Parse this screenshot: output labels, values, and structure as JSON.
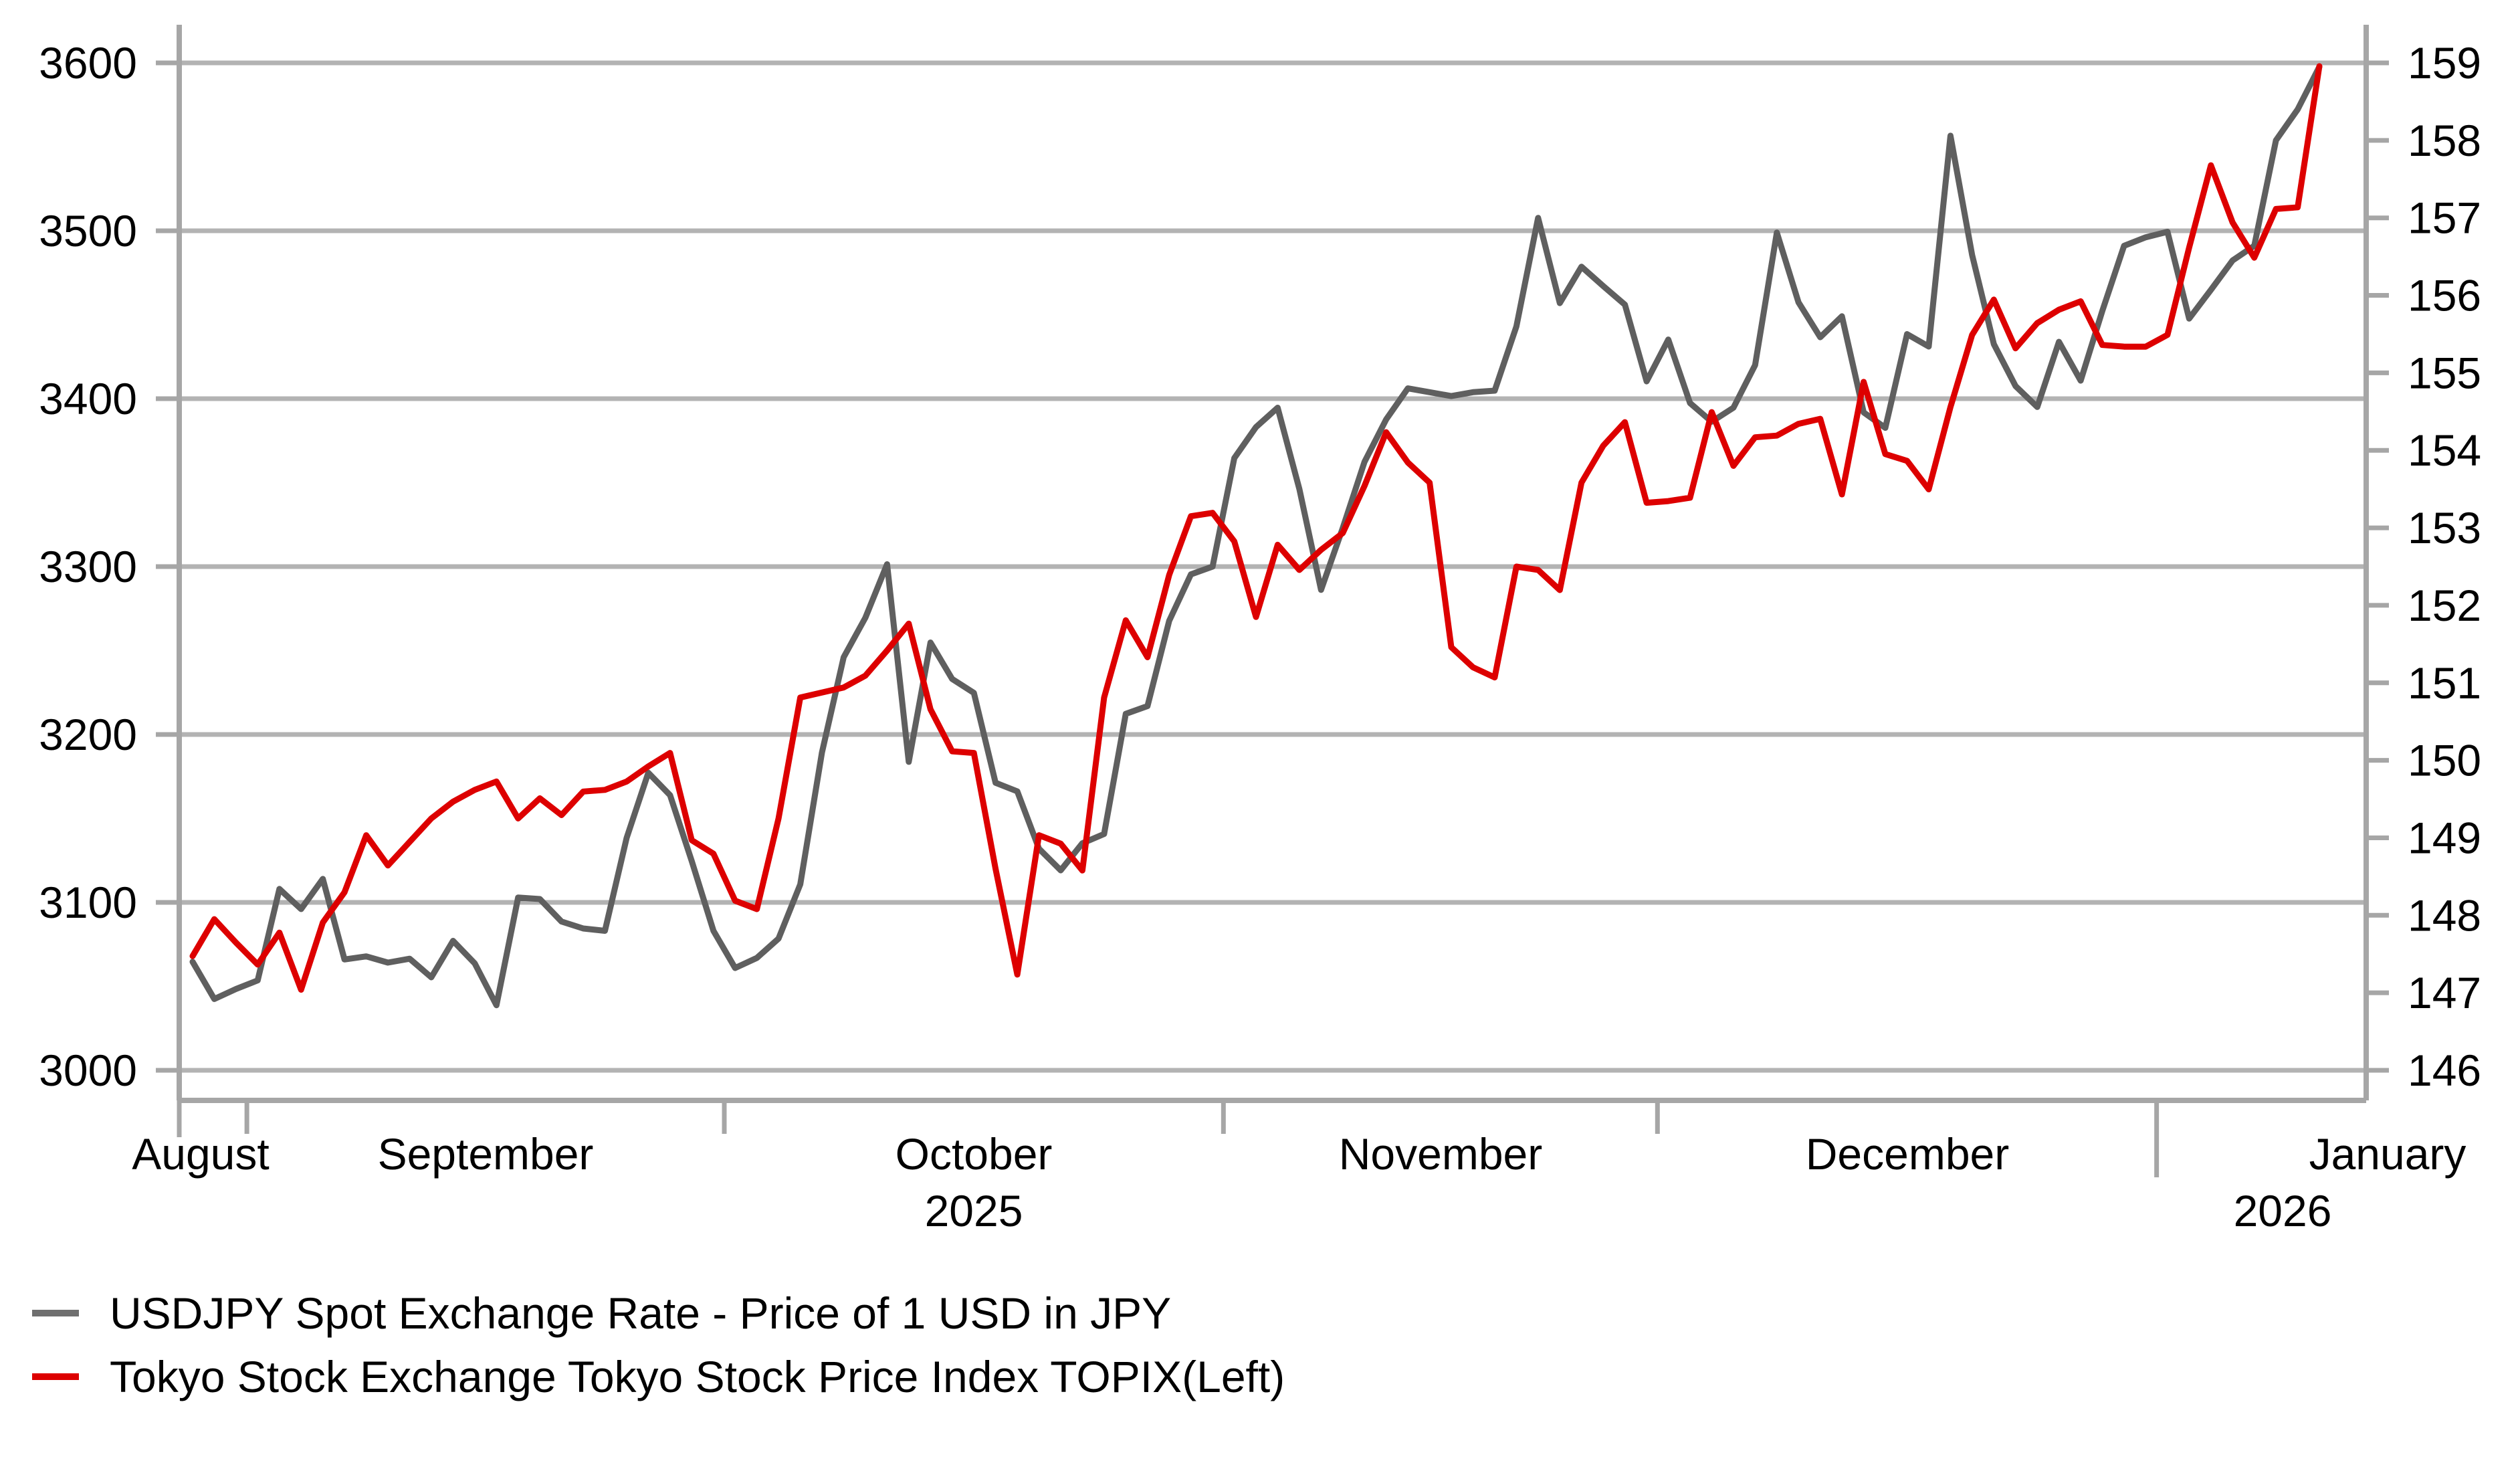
{
  "chart_data": {
    "type": "line",
    "title": "",
    "x_axis": {
      "month_labels": [
        "August",
        "September",
        "October",
        "November",
        "December",
        "January"
      ],
      "year_labels": [
        "2025",
        "2026"
      ]
    },
    "left_axis": {
      "min": 3000,
      "max": 3600,
      "step": 100,
      "tick_labels": [
        "3600",
        "3500",
        "3400",
        "3300",
        "3200",
        "3100",
        "3000"
      ]
    },
    "right_axis": {
      "min": 146,
      "max": 159,
      "step": 1,
      "tick_labels": [
        "159",
        "158",
        "157",
        "156",
        "155",
        "154",
        "153",
        "152",
        "151",
        "150",
        "149",
        "148",
        "147",
        "146"
      ]
    },
    "grid": "horizontal",
    "legend_position": "bottom-left",
    "dates": [
      "2025-08-27",
      "2025-08-28",
      "2025-08-29",
      "2025-09-01",
      "2025-09-02",
      "2025-09-03",
      "2025-09-04",
      "2025-09-05",
      "2025-09-08",
      "2025-09-09",
      "2025-09-10",
      "2025-09-11",
      "2025-09-12",
      "2025-09-15",
      "2025-09-16",
      "2025-09-17",
      "2025-09-18",
      "2025-09-19",
      "2025-09-22",
      "2025-09-23",
      "2025-09-24",
      "2025-09-25",
      "2025-09-26",
      "2025-09-29",
      "2025-09-30",
      "2025-10-01",
      "2025-10-02",
      "2025-10-03",
      "2025-10-06",
      "2025-10-07",
      "2025-10-08",
      "2025-10-09",
      "2025-10-10",
      "2025-10-13",
      "2025-10-14",
      "2025-10-15",
      "2025-10-16",
      "2025-10-17",
      "2025-10-20",
      "2025-10-21",
      "2025-10-22",
      "2025-10-23",
      "2025-10-24",
      "2025-10-27",
      "2025-10-28",
      "2025-10-29",
      "2025-10-30",
      "2025-10-31",
      "2025-11-03",
      "2025-11-04",
      "2025-11-05",
      "2025-11-06",
      "2025-11-07",
      "2025-11-10",
      "2025-11-11",
      "2025-11-12",
      "2025-11-13",
      "2025-11-14",
      "2025-11-17",
      "2025-11-18",
      "2025-11-19",
      "2025-11-20",
      "2025-11-21",
      "2025-11-24",
      "2025-11-25",
      "2025-11-26",
      "2025-11-27",
      "2025-11-28",
      "2025-12-01",
      "2025-12-02",
      "2025-12-03",
      "2025-12-04",
      "2025-12-05",
      "2025-12-08",
      "2025-12-09",
      "2025-12-10",
      "2025-12-11",
      "2025-12-12",
      "2025-12-15",
      "2025-12-16",
      "2025-12-17",
      "2025-12-18",
      "2025-12-19",
      "2025-12-22",
      "2025-12-23",
      "2025-12-24",
      "2025-12-25",
      "2025-12-26",
      "2025-12-29",
      "2025-12-30",
      "2025-12-31",
      "2026-01-01",
      "2026-01-02",
      "2026-01-05",
      "2026-01-06",
      "2026-01-07",
      "2026-01-08",
      "2026-01-09",
      "2026-01-12"
    ],
    "series": [
      {
        "name": "USDJPY Spot Exchange Rate - Price of 1 USD in JPY",
        "axis": "right",
        "color": "#5f5f5f",
        "values": [
          147.4,
          146.92,
          147.05,
          147.16,
          148.34,
          148.08,
          148.47,
          147.43,
          147.47,
          147.39,
          147.44,
          147.2,
          147.67,
          147.38,
          146.84,
          148.23,
          148.21,
          147.92,
          147.83,
          147.8,
          149.0,
          149.84,
          149.55,
          148.7,
          147.8,
          147.32,
          147.45,
          147.7,
          148.4,
          150.1,
          151.33,
          151.84,
          152.53,
          149.98,
          151.52,
          151.05,
          150.87,
          149.71,
          149.6,
          148.86,
          148.58,
          148.93,
          149.05,
          150.6,
          150.7,
          151.8,
          152.4,
          152.5,
          153.9,
          154.3,
          154.55,
          153.5,
          152.2,
          153.0,
          153.85,
          154.4,
          154.8,
          154.75,
          154.7,
          154.75,
          154.77,
          155.6,
          157.0,
          155.9,
          156.37,
          156.12,
          155.88,
          154.89,
          155.43,
          154.61,
          154.37,
          154.55,
          155.1,
          156.81,
          155.91,
          155.46,
          155.73,
          154.49,
          154.29,
          155.5,
          155.34,
          158.06,
          156.52,
          155.37,
          154.83,
          154.56,
          155.4,
          154.9,
          155.8,
          156.64,
          156.75,
          156.82,
          155.7,
          156.07,
          156.45,
          156.64,
          158.0,
          158.4,
          158.95
        ]
      },
      {
        "name": "Tokyo Stock Exchange Tokyo Stock Price Index TOPIX(Left)",
        "axis": "left",
        "color": "#dd0000",
        "values": [
          3068,
          3090,
          3076,
          3063,
          3082,
          3048,
          3088,
          3106,
          3140,
          3122,
          3136,
          3150,
          3160,
          3167,
          3172,
          3150,
          3162,
          3152,
          3166,
          3167,
          3172,
          3181,
          3189,
          3137,
          3129,
          3101,
          3096,
          3150,
          3222,
          3225,
          3228,
          3235,
          3250,
          3266,
          3215,
          3190,
          3189,
          3120,
          3057,
          3140,
          3135,
          3119,
          3222,
          3268,
          3246,
          3295,
          3330,
          3332,
          3315,
          3270,
          3313,
          3298,
          3310,
          3320,
          3348,
          3380,
          3362,
          3350,
          3252,
          3240,
          3234,
          3300,
          3298,
          3286,
          3350,
          3372,
          3386,
          3338,
          3339,
          3341,
          3392,
          3360,
          3377,
          3378,
          3385,
          3388,
          3343,
          3410,
          3367,
          3363,
          3346,
          3395,
          3438,
          3459,
          3430,
          3445,
          3453,
          3458,
          3432,
          3431,
          3431,
          3438,
          3490,
          3539,
          3505,
          3484,
          3513,
          3514,
          3598
        ]
      }
    ]
  },
  "legend": {
    "items": [
      {
        "label": "USDJPY Spot Exchange Rate - Price of 1 USD in JPY",
        "swatch_color": "#6f6f6f"
      },
      {
        "label": "Tokyo Stock Exchange Tokyo Stock Price Index TOPIX(Left)",
        "swatch_color": "#dd0000"
      }
    ]
  },
  "colors": {
    "background": "#ffffff",
    "gridline": "#b3b3b3",
    "axis": "#a6a6a6",
    "text": "#000000",
    "usdjpy_line": "#5f5f5f",
    "topix_line": "#dd0000"
  }
}
